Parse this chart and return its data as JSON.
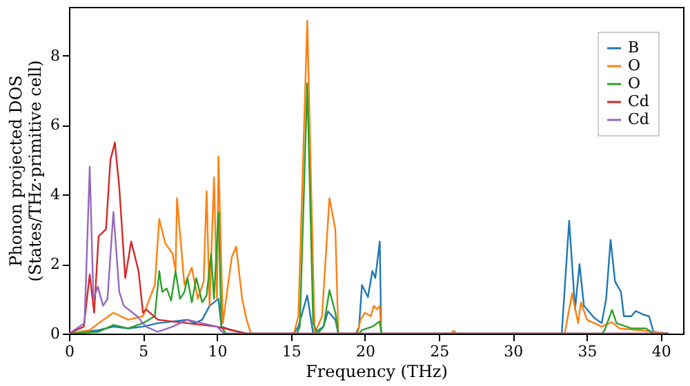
{
  "chart_data": {
    "type": "line",
    "xlabel": "Frequency (THz)",
    "ylabel": "Phonon projected DOS\n(States/THz·primitive cell)",
    "xlim": [
      0,
      41.5
    ],
    "ylim": [
      0,
      9.4
    ],
    "xticks": [
      0,
      5,
      10,
      15,
      20,
      25,
      30,
      35,
      40
    ],
    "yticks": [
      0,
      2,
      4,
      6,
      8
    ],
    "grid": false,
    "legend": "top right",
    "line_style": "solid",
    "marker": "none",
    "series": [
      {
        "name": "B",
        "color": "#1f77b4",
        "x": [
          0,
          1,
          2,
          3,
          4,
          5,
          6,
          7,
          8,
          8.5,
          9,
          9.5,
          10.1,
          10.3,
          11,
          12,
          15.2,
          15.5,
          16.1,
          16.5,
          17.2,
          17.5,
          18.0,
          18.2,
          19.4,
          19.6,
          19.8,
          20.2,
          20.5,
          20.7,
          21.0,
          21.1,
          33.3,
          33.8,
          34.2,
          34.5,
          34.8,
          35.5,
          36.0,
          36.3,
          36.6,
          36.9,
          37.3,
          37.5,
          38.0,
          38.3,
          38.8,
          39.2,
          39.5,
          40.5
        ],
        "values": [
          0,
          0.05,
          0.1,
          0.2,
          0.15,
          0.2,
          0.3,
          0.35,
          0.4,
          0.3,
          0.4,
          0.8,
          1.0,
          0.2,
          0.1,
          0,
          0,
          0.2,
          1.1,
          0,
          0.2,
          0.64,
          0.4,
          0,
          0,
          0.2,
          1.4,
          1.05,
          1.8,
          1.6,
          2.65,
          0,
          0,
          3.25,
          0.7,
          2.0,
          0.8,
          0.45,
          0.3,
          1.0,
          2.7,
          1.5,
          1.2,
          0.5,
          0.5,
          0.65,
          0.55,
          0.5,
          0.05,
          0
        ]
      },
      {
        "name": "O",
        "color": "#ff7f0e",
        "x": [
          0,
          1.4,
          2,
          3,
          4,
          5,
          5.8,
          6.1,
          6.5,
          7,
          7.2,
          7.3,
          7.8,
          8.3,
          8.7,
          9.1,
          9.3,
          9.5,
          9.8,
          10.0,
          10.1,
          10.4,
          11.0,
          11.3,
          11.7,
          12.0,
          12.3,
          15.2,
          15.5,
          16.1,
          16.6,
          17.1,
          17.6,
          18.0,
          18.2,
          19.5,
          19.7,
          20.0,
          20.4,
          20.6,
          20.8,
          21.0,
          21.1,
          25.8,
          26.0,
          26.2,
          33.5,
          34.0,
          34.4,
          34.6,
          35.0,
          36.0,
          36.7,
          37.2,
          38.5,
          39.5,
          40.5
        ],
        "values": [
          0,
          0.1,
          0.3,
          0.6,
          0.4,
          0.5,
          1.4,
          3.3,
          2.6,
          2.3,
          1.8,
          3.9,
          1.4,
          1.9,
          1.0,
          1.5,
          4.1,
          0.8,
          4.5,
          1.0,
          5.1,
          0.3,
          2.2,
          2.5,
          1.0,
          0.4,
          0,
          0,
          0.5,
          9.0,
          0,
          0.5,
          3.9,
          3.0,
          0,
          0,
          0.4,
          0.6,
          0.5,
          0.8,
          0.7,
          0.8,
          0,
          0,
          0.08,
          0,
          0,
          1.16,
          0.3,
          0.9,
          0.4,
          0.2,
          0.33,
          0.15,
          0.1,
          0.05,
          0
        ]
      },
      {
        "name": "O",
        "color": "#2ca02c",
        "x": [
          0,
          2,
          3,
          4,
          5,
          5.8,
          6.1,
          6.3,
          6.6,
          6.9,
          7.2,
          7.5,
          7.8,
          8.0,
          8.3,
          8.6,
          9.0,
          9.3,
          9.6,
          9.8,
          10.1,
          10.3,
          10.6,
          15.4,
          15.6,
          16.1,
          16.5,
          16.8,
          17.2,
          17.6,
          18.0,
          18.2,
          19.6,
          19.8,
          20.5,
          21.0,
          21.1,
          36.0,
          36.2,
          36.7,
          37.0,
          38.0,
          39.0,
          39.5,
          40.5
        ],
        "values": [
          0,
          0.05,
          0.25,
          0.15,
          0.3,
          0.5,
          1.8,
          1.2,
          1.3,
          0.95,
          1.8,
          1.0,
          1.2,
          1.6,
          0.9,
          1.6,
          0.9,
          1.1,
          2.3,
          1.0,
          3.5,
          0.2,
          0,
          0,
          0.2,
          7.2,
          0.3,
          0,
          0.2,
          1.25,
          0.6,
          0,
          0,
          0.1,
          0.2,
          0.35,
          0,
          0,
          0.1,
          0.68,
          0.3,
          0.15,
          0.15,
          0,
          0
        ]
      },
      {
        "name": "Cd",
        "color": "#d62728",
        "x": [
          0,
          1.0,
          1.4,
          1.7,
          2.0,
          2.5,
          2.8,
          3.1,
          3.4,
          3.8,
          4.2,
          4.7,
          5.0,
          5.2,
          6,
          7,
          8,
          9,
          10,
          11,
          12,
          40.5
        ],
        "values": [
          0,
          0.2,
          1.7,
          0.6,
          2.8,
          3.0,
          5.0,
          5.5,
          4.2,
          1.6,
          2.65,
          1.8,
          0.6,
          0.7,
          0.4,
          0.35,
          0.3,
          0.25,
          0.2,
          0.1,
          0,
          0
        ]
      },
      {
        "name": "Cd",
        "color": "#9467bd",
        "x": [
          0,
          1.05,
          1.4,
          1.65,
          1.95,
          2.3,
          2.6,
          3.0,
          3.4,
          3.7,
          4.6,
          5.2,
          6,
          7,
          8,
          9,
          10,
          10.5,
          40.5
        ],
        "values": [
          0,
          0.3,
          4.8,
          1.0,
          1.35,
          0.8,
          1.0,
          3.5,
          1.2,
          0.8,
          0.5,
          0.2,
          0.05,
          0.2,
          0.4,
          0.3,
          0.2,
          0,
          0
        ]
      }
    ]
  }
}
